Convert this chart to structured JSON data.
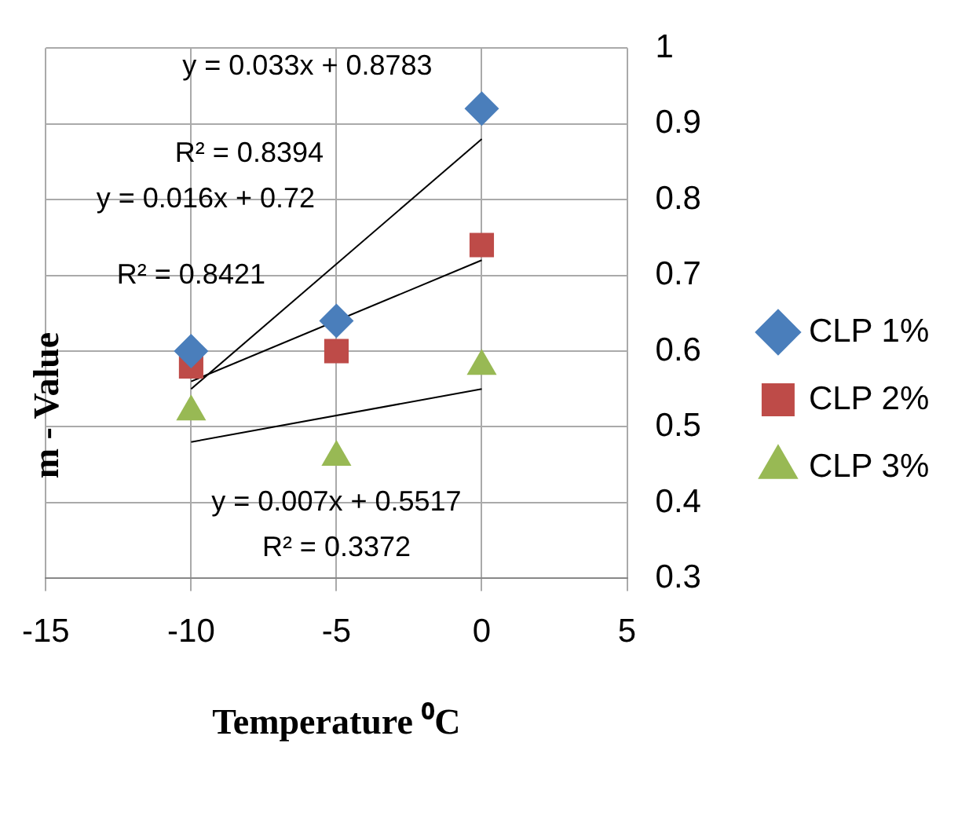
{
  "chart_data": {
    "type": "scatter",
    "xlabel": "Temperature ⁰C",
    "ylabel": "m - Value",
    "xlim": [
      -15,
      5
    ],
    "xticks": [
      -15,
      -10,
      -5,
      0,
      5
    ],
    "ylim": [
      0.3,
      1
    ],
    "yticks": [
      0.3,
      0.4,
      0.5,
      0.6,
      0.7,
      0.8,
      0.9,
      1
    ],
    "grid": true,
    "legend": "right",
    "series": [
      {
        "name": "CLP 1%",
        "color": "#4a7ebb",
        "marker": "diamond",
        "x": [
          -10,
          -5,
          0
        ],
        "values": [
          0.6,
          0.64,
          0.92
        ]
      },
      {
        "name": "CLP 2%",
        "color": "#be4b48",
        "marker": "square",
        "x": [
          -10,
          -5,
          0
        ],
        "values": [
          0.58,
          0.6,
          0.74
        ]
      },
      {
        "name": "CLP 3%",
        "color": "#98b954",
        "marker": "triangle",
        "x": [
          -10,
          -5,
          0
        ],
        "values": [
          0.52,
          0.46,
          0.58
        ]
      },
      {
        "type": "line",
        "color": "#000000",
        "marker": "none",
        "x": [
          -10,
          0
        ],
        "values": [
          0.55,
          0.88
        ]
      },
      {
        "type": "line",
        "color": "#000000",
        "marker": "none",
        "x": [
          -10,
          0
        ],
        "values": [
          0.56,
          0.72
        ]
      },
      {
        "type": "line",
        "color": "#000000",
        "marker": "none",
        "x": [
          -10,
          0
        ],
        "values": [
          0.48,
          0.55
        ]
      }
    ],
    "annotations": [
      "y = 0.033x + 0.8783",
      "R² = 0.8394",
      "y = 0.016x + 0.72",
      "R² = 0.8421",
      "y = 0.007x + 0.5517",
      "R² = 0.3372"
    ]
  }
}
